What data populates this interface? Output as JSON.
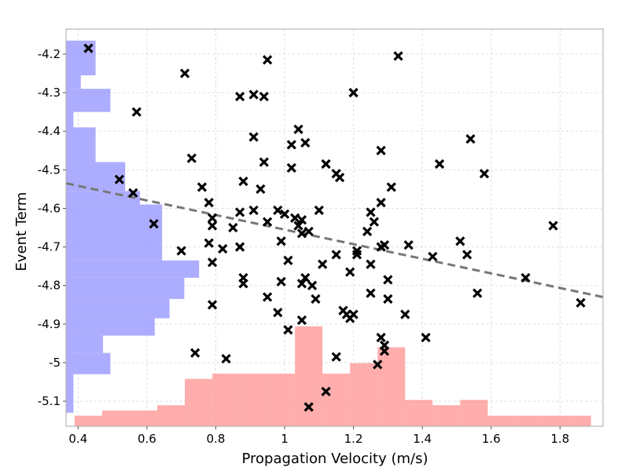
{
  "chart_data": {
    "type": "scatter",
    "title": "",
    "xlabel": "Propagation Velocity (m/s)",
    "ylabel": "Event Term",
    "xlim": [
      0.365,
      1.925
    ],
    "ylim": [
      -5.165,
      -4.135
    ],
    "grid": true,
    "legend": "none",
    "x_ticks": [
      {
        "value": 0.4,
        "label": "0.4"
      },
      {
        "value": 0.6,
        "label": "0.6"
      },
      {
        "value": 0.8,
        "label": "0.8"
      },
      {
        "value": 1.0,
        "label": "1"
      },
      {
        "value": 1.2,
        "label": "1.2"
      },
      {
        "value": 1.4,
        "label": "1.4"
      },
      {
        "value": 1.6,
        "label": "1.6"
      },
      {
        "value": 1.8,
        "label": "1.8"
      }
    ],
    "y_ticks": [
      {
        "value": -4.2,
        "label": "-4.2"
      },
      {
        "value": -4.3,
        "label": "-4.3"
      },
      {
        "value": -4.4,
        "label": "-4.4"
      },
      {
        "value": -4.5,
        "label": "-4.5"
      },
      {
        "value": -4.6,
        "label": "-4.6"
      },
      {
        "value": -4.7,
        "label": "-4.7"
      },
      {
        "value": -4.8,
        "label": "-4.8"
      },
      {
        "value": -4.9,
        "label": "-4.9"
      },
      {
        "value": -5.0,
        "label": "-5"
      },
      {
        "value": -5.1,
        "label": "-5.1"
      }
    ],
    "colors": {
      "marker": "#000000",
      "trend": "#777777",
      "x_hist": "#ff9999",
      "y_hist": "#9999ff",
      "grid": "#dddddd",
      "frame": "#aaaaaa"
    },
    "points": [
      {
        "x": 0.43,
        "y": -4.185
      },
      {
        "x": 0.71,
        "y": -4.25
      },
      {
        "x": 0.57,
        "y": -4.35
      },
      {
        "x": 0.95,
        "y": -4.215
      },
      {
        "x": 1.33,
        "y": -4.205
      },
      {
        "x": 1.2,
        "y": -4.3
      },
      {
        "x": 0.87,
        "y": -4.31
      },
      {
        "x": 0.91,
        "y": -4.305
      },
      {
        "x": 0.94,
        "y": -4.31
      },
      {
        "x": 1.04,
        "y": -4.395
      },
      {
        "x": 1.02,
        "y": -4.435
      },
      {
        "x": 1.06,
        "y": -4.43
      },
      {
        "x": 0.91,
        "y": -4.415
      },
      {
        "x": 1.28,
        "y": -4.45
      },
      {
        "x": 1.54,
        "y": -4.42
      },
      {
        "x": 0.73,
        "y": -4.47
      },
      {
        "x": 0.94,
        "y": -4.48
      },
      {
        "x": 1.02,
        "y": -4.495
      },
      {
        "x": 1.12,
        "y": -4.485
      },
      {
        "x": 1.15,
        "y": -4.51
      },
      {
        "x": 1.16,
        "y": -4.52
      },
      {
        "x": 1.45,
        "y": -4.485
      },
      {
        "x": 1.58,
        "y": -4.51
      },
      {
        "x": 0.52,
        "y": -4.525
      },
      {
        "x": 0.56,
        "y": -4.56
      },
      {
        "x": 0.76,
        "y": -4.545
      },
      {
        "x": 0.88,
        "y": -4.53
      },
      {
        "x": 0.93,
        "y": -4.55
      },
      {
        "x": 1.31,
        "y": -4.545
      },
      {
        "x": 0.78,
        "y": -4.585
      },
      {
        "x": 1.28,
        "y": -4.585
      },
      {
        "x": 0.62,
        "y": -4.64
      },
      {
        "x": 0.79,
        "y": -4.625
      },
      {
        "x": 0.79,
        "y": -4.645
      },
      {
        "x": 0.87,
        "y": -4.61
      },
      {
        "x": 0.91,
        "y": -4.605
      },
      {
        "x": 0.95,
        "y": -4.635
      },
      {
        "x": 0.98,
        "y": -4.605
      },
      {
        "x": 1.0,
        "y": -4.615
      },
      {
        "x": 1.03,
        "y": -4.625
      },
      {
        "x": 1.04,
        "y": -4.645
      },
      {
        "x": 1.05,
        "y": -4.63
      },
      {
        "x": 1.05,
        "y": -4.665
      },
      {
        "x": 1.07,
        "y": -4.66
      },
      {
        "x": 1.1,
        "y": -4.605
      },
      {
        "x": 1.25,
        "y": -4.61
      },
      {
        "x": 1.26,
        "y": -4.635
      },
      {
        "x": 1.78,
        "y": -4.645
      },
      {
        "x": 0.85,
        "y": -4.65
      },
      {
        "x": 0.7,
        "y": -4.71
      },
      {
        "x": 0.78,
        "y": -4.69
      },
      {
        "x": 0.82,
        "y": -4.705
      },
      {
        "x": 0.87,
        "y": -4.7
      },
      {
        "x": 0.99,
        "y": -4.685
      },
      {
        "x": 1.24,
        "y": -4.66
      },
      {
        "x": 1.28,
        "y": -4.7
      },
      {
        "x": 1.29,
        "y": -4.695
      },
      {
        "x": 1.51,
        "y": -4.685
      },
      {
        "x": 1.36,
        "y": -4.695
      },
      {
        "x": 1.53,
        "y": -4.72
      },
      {
        "x": 1.15,
        "y": -4.72
      },
      {
        "x": 1.21,
        "y": -4.71
      },
      {
        "x": 1.21,
        "y": -4.72
      },
      {
        "x": 1.43,
        "y": -4.725
      },
      {
        "x": 0.79,
        "y": -4.74
      },
      {
        "x": 1.01,
        "y": -4.735
      },
      {
        "x": 1.11,
        "y": -4.745
      },
      {
        "x": 1.25,
        "y": -4.745
      },
      {
        "x": 1.19,
        "y": -4.765
      },
      {
        "x": 0.88,
        "y": -4.78
      },
      {
        "x": 0.88,
        "y": -4.795
      },
      {
        "x": 0.99,
        "y": -4.79
      },
      {
        "x": 1.05,
        "y": -4.795
      },
      {
        "x": 1.06,
        "y": -4.78
      },
      {
        "x": 1.08,
        "y": -4.8
      },
      {
        "x": 1.3,
        "y": -4.785
      },
      {
        "x": 1.7,
        "y": -4.78
      },
      {
        "x": 0.95,
        "y": -4.83
      },
      {
        "x": 1.09,
        "y": -4.835
      },
      {
        "x": 1.25,
        "y": -4.82
      },
      {
        "x": 1.3,
        "y": -4.835
      },
      {
        "x": 1.56,
        "y": -4.82
      },
      {
        "x": 1.86,
        "y": -4.845
      },
      {
        "x": 0.79,
        "y": -4.85
      },
      {
        "x": 0.98,
        "y": -4.87
      },
      {
        "x": 1.17,
        "y": -4.865
      },
      {
        "x": 1.18,
        "y": -4.875
      },
      {
        "x": 1.19,
        "y": -4.885
      },
      {
        "x": 1.2,
        "y": -4.875
      },
      {
        "x": 1.35,
        "y": -4.875
      },
      {
        "x": 1.05,
        "y": -4.89
      },
      {
        "x": 1.01,
        "y": -4.915
      },
      {
        "x": 1.28,
        "y": -4.935
      },
      {
        "x": 1.41,
        "y": -4.935
      },
      {
        "x": 1.29,
        "y": -4.955
      },
      {
        "x": 1.29,
        "y": -4.97
      },
      {
        "x": 0.74,
        "y": -4.975
      },
      {
        "x": 1.15,
        "y": -4.985
      },
      {
        "x": 0.83,
        "y": -4.99
      },
      {
        "x": 1.27,
        "y": -5.005
      },
      {
        "x": 1.12,
        "y": -5.075
      },
      {
        "x": 1.07,
        "y": -5.115
      }
    ],
    "trend_line": {
      "x": [
        0.365,
        1.925
      ],
      "y": [
        -4.535,
        -4.83
      ]
    },
    "x_histogram": {
      "bin_edges": [
        0.39,
        0.47,
        0.55,
        0.63,
        0.71,
        0.79,
        0.87,
        0.95,
        1.03,
        1.11,
        1.19,
        1.27,
        1.35,
        1.43,
        1.51,
        1.59,
        1.67,
        1.75,
        1.83,
        1.89
      ],
      "counts": [
        2,
        3,
        3,
        4,
        9,
        10,
        10,
        10,
        19,
        10,
        12,
        15,
        5,
        4,
        5,
        2,
        2,
        2,
        2
      ]
    },
    "y_histogram": {
      "bin_edges": [
        -4.165,
        -4.255,
        -4.29,
        -4.35,
        -4.39,
        -4.48,
        -4.555,
        -4.59,
        -4.735,
        -4.78,
        -4.835,
        -4.885,
        -4.93,
        -4.975,
        -5.03,
        -5.13
      ],
      "counts": [
        4,
        2,
        6,
        1,
        4,
        8,
        10,
        13,
        18,
        16,
        14,
        12,
        5,
        6,
        1
      ]
    }
  }
}
